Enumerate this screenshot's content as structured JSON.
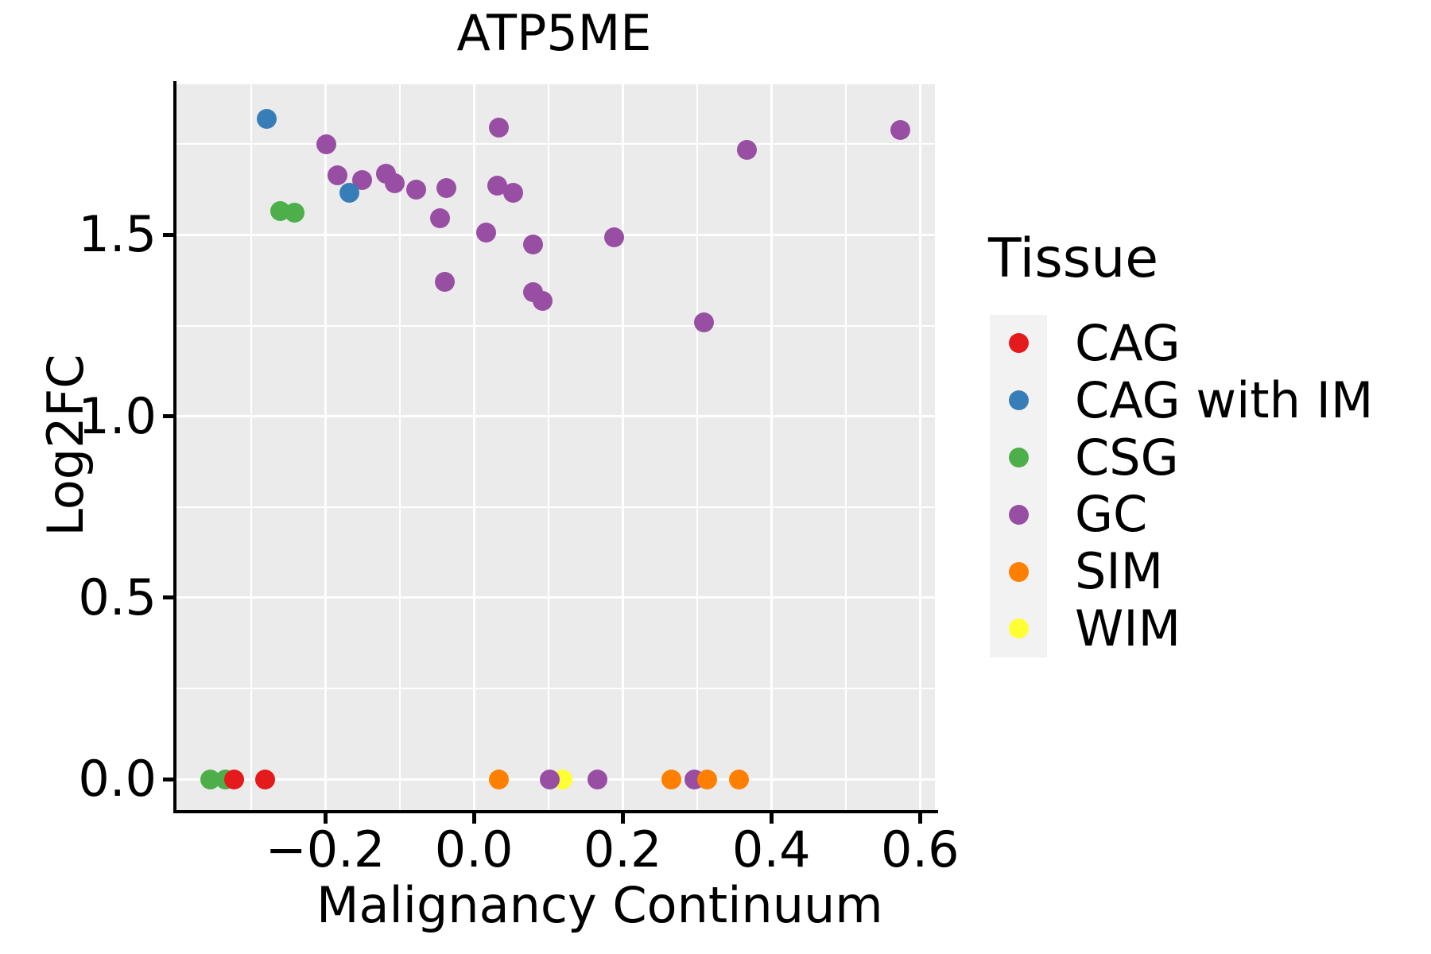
{
  "chart_data": {
    "type": "scatter",
    "title": "ATP5ME",
    "xlabel": "Malignancy Continuum",
    "ylabel": "Log2FC",
    "xlim": [
      -0.4,
      0.62
    ],
    "ylim": [
      -0.085,
      1.915
    ],
    "grid": "on",
    "legend_position": "right-outside",
    "legend_title": "Tissue",
    "x_ticks": [
      {
        "value": -0.2,
        "label": "−0.2"
      },
      {
        "value": 0.0,
        "label": "0.0"
      },
      {
        "value": 0.2,
        "label": "0.2"
      },
      {
        "value": 0.4,
        "label": "0.4"
      },
      {
        "value": 0.6,
        "label": "0.6"
      }
    ],
    "y_ticks": [
      {
        "value": 0.0,
        "label": "0.0"
      },
      {
        "value": 0.5,
        "label": "0.5"
      },
      {
        "value": 1.0,
        "label": "1.0"
      },
      {
        "value": 1.5,
        "label": "1.5"
      }
    ],
    "x_minor_gridlines": [
      -0.3,
      -0.1,
      0.1,
      0.3,
      0.5
    ],
    "y_minor_gridlines": [
      0.25,
      0.75,
      1.25,
      1.75
    ],
    "series": [
      {
        "name": "CAG",
        "color": "#E41A1C",
        "points": [
          [
            -0.322,
            0.0
          ],
          [
            -0.281,
            0.0
          ]
        ]
      },
      {
        "name": "CAG with IM",
        "color": "#377EB8",
        "points": [
          [
            -0.279,
            1.819
          ],
          [
            -0.167,
            1.616
          ]
        ]
      },
      {
        "name": "CSG",
        "color": "#4DAF4A",
        "points": [
          [
            -0.261,
            1.566
          ],
          [
            -0.241,
            1.562
          ],
          [
            -0.355,
            0.0
          ],
          [
            -0.334,
            0.0
          ]
        ]
      },
      {
        "name": "GC",
        "color": "#984EA3",
        "points": [
          [
            -0.198,
            1.75
          ],
          [
            -0.184,
            1.664
          ],
          [
            -0.15,
            1.651
          ],
          [
            -0.118,
            1.668
          ],
          [
            -0.106,
            1.643
          ],
          [
            -0.078,
            1.624
          ],
          [
            -0.046,
            1.546
          ],
          [
            -0.037,
            1.63
          ],
          [
            -0.039,
            1.371
          ],
          [
            0.016,
            1.507
          ],
          [
            0.031,
            1.635
          ],
          [
            0.034,
            1.795
          ],
          [
            0.053,
            1.615
          ],
          [
            0.079,
            1.474
          ],
          [
            0.08,
            1.343
          ],
          [
            0.092,
            1.317
          ],
          [
            0.189,
            1.494
          ],
          [
            0.309,
            1.26
          ],
          [
            0.367,
            1.735
          ],
          [
            0.573,
            1.788
          ],
          [
            0.102,
            0.0
          ],
          [
            0.166,
            0.0
          ],
          [
            0.297,
            0.0
          ]
        ]
      },
      {
        "name": "SIM",
        "color": "#FF7F00",
        "points": [
          [
            0.034,
            0.0
          ],
          [
            0.266,
            0.0
          ],
          [
            0.314,
            0.0
          ],
          [
            0.356,
            0.0
          ]
        ]
      },
      {
        "name": "WIM",
        "color": "#FFFF33",
        "points": [
          [
            0.119,
            0.0
          ]
        ]
      }
    ],
    "draw_order": [
      "CSG",
      "CAG",
      "WIM",
      "GC",
      "CAG with IM",
      "SIM"
    ],
    "marker_diameter_px": 25,
    "colors": {
      "panel_bg": "#EBEBEB",
      "grid": "#FFFFFF",
      "legend_key_bg": "#F2F2F2",
      "spine": "#000000",
      "text": "#000000"
    }
  }
}
